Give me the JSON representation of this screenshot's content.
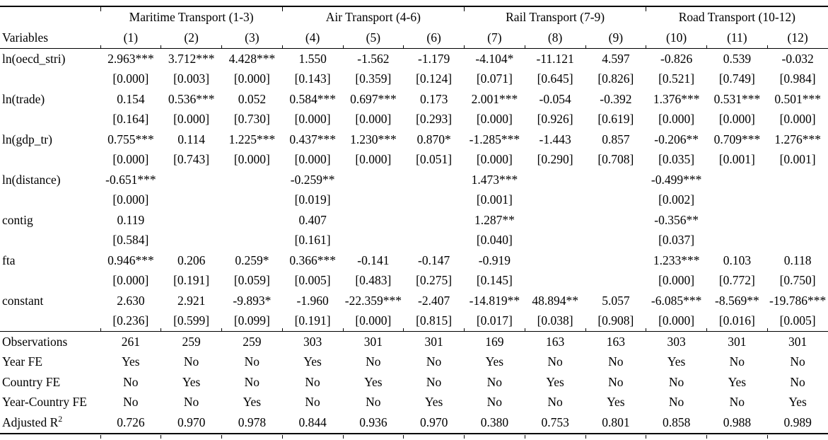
{
  "page": {
    "background_color": "#ffffff",
    "text_color": "#000000"
  },
  "table": {
    "group_headers": [
      {
        "label": "Maritime Transport (1-3)"
      },
      {
        "label": "Air Transport (4-6)"
      },
      {
        "label": "Rail Transport (7-9)"
      },
      {
        "label": "Road Transport (10-12)"
      }
    ],
    "variables_header": "Variables",
    "column_headers": [
      "(1)",
      "(2)",
      "(3)",
      "(4)",
      "(5)",
      "(6)",
      "(7)",
      "(8)",
      "(9)",
      "(10)",
      "(11)",
      "(12)"
    ],
    "coefficient_rows": [
      {
        "variable": "ln(oecd_stri)",
        "coefficients": [
          "2.963***",
          "3.712***",
          "4.428***",
          "1.550",
          "-1.562",
          "-1.179",
          "-4.104*",
          "-11.121",
          "4.597",
          "-0.826",
          "0.539",
          "-0.032"
        ],
        "p_values": [
          "[0.000]",
          "[0.003]",
          "[0.000]",
          "[0.143]",
          "[0.359]",
          "[0.124]",
          "[0.071]",
          "[0.645]",
          "[0.826]",
          "[0.521]",
          "[0.749]",
          "[0.984]"
        ]
      },
      {
        "variable": "ln(trade)",
        "coefficients": [
          "0.154",
          "0.536***",
          "0.052",
          "0.584***",
          "0.697***",
          "0.173",
          "2.001***",
          "-0.054",
          "-0.392",
          "1.376***",
          "0.531***",
          "0.501***"
        ],
        "p_values": [
          "[0.164]",
          "[0.000]",
          "[0.730]",
          "[0.000]",
          "[0.000]",
          "[0.293]",
          "[0.000]",
          "[0.926]",
          "[0.619]",
          "[0.000]",
          "[0.000]",
          "[0.000]"
        ]
      },
      {
        "variable": "ln(gdp_tr)",
        "coefficients": [
          "0.755***",
          "0.114",
          "1.225***",
          "0.437***",
          "1.230***",
          "0.870*",
          "-1.285***",
          "-1.443",
          "0.857",
          "-0.206**",
          "0.709***",
          "1.276***"
        ],
        "p_values": [
          "[0.000]",
          "[0.743]",
          "[0.000]",
          "[0.000]",
          "[0.000]",
          "[0.051]",
          "[0.000]",
          "[0.290]",
          "[0.708]",
          "[0.035]",
          "[0.001]",
          "[0.001]"
        ]
      },
      {
        "variable": "ln(distance)",
        "coefficients": [
          "-0.651***",
          "",
          "",
          "-0.259**",
          "",
          "",
          "1.473***",
          "",
          "",
          "-0.499***",
          "",
          ""
        ],
        "p_values": [
          "[0.000]",
          "",
          "",
          "[0.019]",
          "",
          "",
          "[0.001]",
          "",
          "",
          "[0.002]",
          "",
          ""
        ]
      },
      {
        "variable": "contig",
        "coefficients": [
          "0.119",
          "",
          "",
          "0.407",
          "",
          "",
          "1.287**",
          "",
          "",
          "-0.356**",
          "",
          ""
        ],
        "p_values": [
          "[0.584]",
          "",
          "",
          "[0.161]",
          "",
          "",
          "[0.040]",
          "",
          "",
          "[0.037]",
          "",
          ""
        ]
      },
      {
        "variable": "fta",
        "coefficients": [
          "0.946***",
          "0.206",
          "0.259*",
          "0.366***",
          "-0.141",
          "-0.147",
          "-0.919",
          "",
          "",
          "1.233***",
          "0.103",
          "0.118"
        ],
        "p_values": [
          "[0.000]",
          "[0.191]",
          "[0.059]",
          "[0.005]",
          "[0.483]",
          "[0.275]",
          "[0.145]",
          "",
          "",
          "[0.000]",
          "[0.772]",
          "[0.750]"
        ]
      },
      {
        "variable": "constant",
        "coefficients": [
          "2.630",
          "2.921",
          "-9.893*",
          "-1.960",
          "-22.359***",
          "-2.407",
          "-14.819**",
          "48.894**",
          "5.057",
          "-6.085***",
          "-8.569**",
          "-19.786***"
        ],
        "p_values": [
          "[0.236]",
          "[0.599]",
          "[0.099]",
          "[0.191]",
          "[0.000]",
          "[0.815]",
          "[0.017]",
          "[0.038]",
          "[0.908]",
          "[0.000]",
          "[0.016]",
          "[0.005]"
        ]
      }
    ],
    "summary_rows": [
      {
        "label": "Observations",
        "values": [
          "261",
          "259",
          "259",
          "303",
          "301",
          "301",
          "169",
          "163",
          "163",
          "303",
          "301",
          "301"
        ]
      },
      {
        "label": "Year FE",
        "values": [
          "Yes",
          "No",
          "No",
          "Yes",
          "No",
          "No",
          "Yes",
          "No",
          "No",
          "Yes",
          "No",
          "No"
        ]
      },
      {
        "label": "Country FE",
        "values": [
          "No",
          "Yes",
          "No",
          "No",
          "Yes",
          "No",
          "No",
          "Yes",
          "No",
          "No",
          "Yes",
          "No"
        ]
      },
      {
        "label": "Year-Country FE",
        "values": [
          "No",
          "No",
          "Yes",
          "No",
          "No",
          "Yes",
          "No",
          "No",
          "Yes",
          "No",
          "No",
          "Yes"
        ]
      },
      {
        "label": "Adjusted R",
        "label_sup": "2",
        "values": [
          "0.726",
          "0.970",
          "0.978",
          "0.844",
          "0.936",
          "0.970",
          "0.380",
          "0.753",
          "0.801",
          "0.858",
          "0.988",
          "0.989"
        ]
      }
    ]
  }
}
